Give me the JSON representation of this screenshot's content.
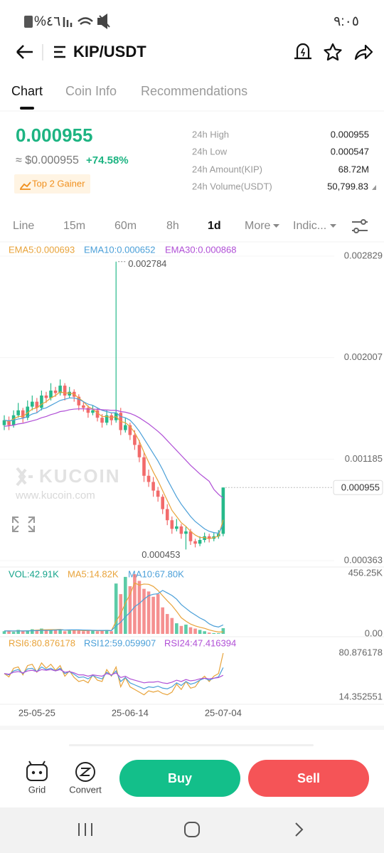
{
  "status": {
    "battery": "%٤٦",
    "time": "٩:٠٥"
  },
  "header": {
    "pair": "KIP/USDT"
  },
  "tabs": [
    "Chart",
    "Coin Info",
    "Recommendations"
  ],
  "ticker": {
    "price": "0.000955",
    "fiat": "≈ $0.000955",
    "change": "+74.58%",
    "badge": "Top 2 Gainer",
    "stats": [
      {
        "label": "24h High",
        "value": "0.000955"
      },
      {
        "label": "24h Low",
        "value": "0.000547"
      },
      {
        "label": "24h Amount(KIP)",
        "value": "68.72M"
      },
      {
        "label": "24h Volume(USDT)",
        "value": "50,799.83"
      }
    ]
  },
  "intervals": [
    "Line",
    "15m",
    "60m",
    "8h",
    "1d",
    "More",
    "Indic..."
  ],
  "chart_data": {
    "type": "candlestick",
    "up_color": "#26b98a",
    "down_color": "#f26b6b",
    "grid": true,
    "watermark": "KUCOIN",
    "watermark_url": "www.kucoin.com",
    "dates": [
      null,
      null,
      null,
      null,
      null,
      null,
      null,
      "25-05-25",
      null,
      null,
      null,
      null,
      null,
      null,
      null,
      null,
      null,
      null,
      null,
      null,
      null,
      null,
      null,
      null,
      null,
      null,
      null,
      "25-06-14",
      null,
      null,
      null,
      null,
      null,
      null,
      null,
      null,
      null,
      null,
      null,
      null,
      null,
      null,
      null,
      null,
      null,
      null,
      null,
      "25-07-04"
    ],
    "candles": [
      [
        0.00146,
        0.00154,
        0.00142,
        0.0015
      ],
      [
        0.0015,
        0.00153,
        0.00142,
        0.00146
      ],
      [
        0.00146,
        0.00158,
        0.00144,
        0.00154
      ],
      [
        0.00154,
        0.00164,
        0.00152,
        0.00158
      ],
      [
        0.00158,
        0.0016,
        0.00148,
        0.00152
      ],
      [
        0.00152,
        0.00166,
        0.0015,
        0.00161
      ],
      [
        0.00161,
        0.0017,
        0.00158,
        0.00165
      ],
      [
        0.00165,
        0.00168,
        0.00156,
        0.0016
      ],
      [
        0.0016,
        0.00174,
        0.00158,
        0.0017
      ],
      [
        0.0017,
        0.00173,
        0.00164,
        0.00168
      ],
      [
        0.00168,
        0.0018,
        0.00166,
        0.00174
      ],
      [
        0.00174,
        0.00177,
        0.00169,
        0.00172
      ],
      [
        0.00172,
        0.00183,
        0.0017,
        0.00178
      ],
      [
        0.00178,
        0.0018,
        0.00166,
        0.0017
      ],
      [
        0.0017,
        0.00177,
        0.00168,
        0.00173
      ],
      [
        0.00173,
        0.00175,
        0.00165,
        0.00169
      ],
      [
        0.00169,
        0.00171,
        0.00158,
        0.00162
      ],
      [
        0.00162,
        0.00165,
        0.00157,
        0.0016
      ],
      [
        0.0016,
        0.00162,
        0.00152,
        0.00156
      ],
      [
        0.00156,
        0.00162,
        0.00154,
        0.00158
      ],
      [
        0.00158,
        0.0016,
        0.00149,
        0.00152
      ],
      [
        0.00152,
        0.00155,
        0.00144,
        0.00148
      ],
      [
        0.00148,
        0.00158,
        0.00146,
        0.00154
      ],
      [
        0.00154,
        0.00156,
        0.00146,
        0.0015
      ],
      [
        0.0015,
        0.002784,
        0.00148,
        0.00156
      ],
      [
        0.00156,
        0.0016,
        0.00138,
        0.00142
      ],
      [
        0.00142,
        0.00152,
        0.0014,
        0.00146
      ],
      [
        0.00146,
        0.00148,
        0.00134,
        0.00138
      ],
      [
        0.00138,
        0.00142,
        0.00126,
        0.0013
      ],
      [
        0.0013,
        0.00134,
        0.00116,
        0.0012
      ],
      [
        0.0012,
        0.00124,
        0.001,
        0.00105
      ],
      [
        0.00105,
        0.0011,
        0.00096,
        0.001
      ],
      [
        0.001,
        0.00104,
        0.00088,
        0.00093
      ],
      [
        0.00093,
        0.00096,
        0.00084,
        0.00088
      ],
      [
        0.00088,
        0.0009,
        0.00074,
        0.00078
      ],
      [
        0.00078,
        0.00082,
        0.00065,
        0.00069
      ],
      [
        0.00069,
        0.00072,
        0.00058,
        0.00062
      ],
      [
        0.00062,
        0.0007,
        0.0006,
        0.00064
      ],
      [
        0.00064,
        0.00066,
        0.00054,
        0.00058
      ],
      [
        0.00058,
        0.00064,
        0.000453,
        0.0006
      ],
      [
        0.0006,
        0.00062,
        0.00049,
        0.00052
      ],
      [
        0.00052,
        0.00054,
        0.00047,
        0.0005
      ],
      [
        0.0005,
        0.00056,
        0.00048,
        0.00053
      ],
      [
        0.00053,
        0.00059,
        0.00051,
        0.00056
      ],
      [
        0.00056,
        0.00058,
        0.00051,
        0.00054
      ],
      [
        0.00054,
        0.00059,
        0.00052,
        0.00056
      ],
      [
        0.00056,
        0.00061,
        0.00054,
        0.00058
      ],
      [
        0.00058,
        0.000955,
        0.00056,
        0.000955
      ]
    ],
    "ylim": [
      0.000363,
      0.002829
    ],
    "yticks": [
      0.000363,
      0.001185,
      0.002007,
      0.002829
    ],
    "ema": [
      {
        "name": "EMA5:0.000693",
        "color": "#e8a33a",
        "values": [
          0.0015,
          0.00149,
          0.00151,
          0.00153,
          0.00153,
          0.00156,
          0.00159,
          0.0016,
          0.00163,
          0.00165,
          0.00168,
          0.0017,
          0.00173,
          0.00172,
          0.00172,
          0.00171,
          0.00168,
          0.00165,
          0.00161,
          0.00159,
          0.00156,
          0.00153,
          0.00153,
          0.00152,
          0.00153,
          0.00149,
          0.00148,
          0.00145,
          0.0014,
          0.00133,
          0.00124,
          0.00116,
          0.00108,
          0.00101,
          0.00093,
          0.00085,
          0.00077,
          0.00072,
          0.00067,
          0.00064,
          0.0006,
          0.00057,
          0.00055,
          0.00055,
          0.00054,
          0.00055,
          0.00056,
          0.000693
        ]
      },
      {
        "name": "EMA10:0.000652",
        "color": "#4a9fd8",
        "values": [
          0.0015,
          0.001495,
          0.0015,
          0.00151,
          0.001515,
          0.00153,
          0.00155,
          0.00156,
          0.00159,
          0.0016,
          0.00162,
          0.00164,
          0.00166,
          0.00167,
          0.00168,
          0.00168,
          0.00167,
          0.00165,
          0.00163,
          0.00162,
          0.0016,
          0.00158,
          0.00157,
          0.00156,
          0.00156,
          0.00153,
          0.00152,
          0.0015,
          0.00146,
          0.00141,
          0.00135,
          0.00129,
          0.00123,
          0.00117,
          0.0011,
          0.00102,
          0.00095,
          0.00088,
          0.00082,
          0.00077,
          0.00072,
          0.00068,
          0.00065,
          0.00062,
          0.0006,
          0.00059,
          0.000585,
          0.000652
        ]
      },
      {
        "name": "EMA30:0.000868",
        "color": "#b04fd6",
        "values": [
          0.00145,
          0.001455,
          0.00146,
          0.00147,
          0.001475,
          0.001485,
          0.001495,
          0.001505,
          0.00152,
          0.00153,
          0.001545,
          0.001555,
          0.00157,
          0.001575,
          0.001585,
          0.00159,
          0.001592,
          0.001592,
          0.00159,
          0.00159,
          0.001588,
          0.001585,
          0.001583,
          0.00158,
          0.00158,
          0.00157,
          0.001565,
          0.001555,
          0.00154,
          0.00152,
          0.001495,
          0.00147,
          0.00144,
          0.00141,
          0.001375,
          0.001335,
          0.001295,
          0.001255,
          0.001215,
          0.001175,
          0.001135,
          0.0011,
          0.001065,
          0.001035,
          0.001005,
          0.00094,
          0.0009,
          0.000868
        ]
      }
    ],
    "volume": {
      "legend": "VOL:42.91K",
      "values": [
        20000,
        25000,
        15000,
        30000,
        20000,
        25000,
        35000,
        30000,
        40000,
        25000,
        30000,
        35000,
        30000,
        20000,
        25000,
        30000,
        25000,
        20000,
        30000,
        25000,
        20000,
        25000,
        30000,
        20000,
        380000,
        300000,
        430000,
        360000,
        450000,
        400000,
        340000,
        320000,
        280000,
        300000,
        200000,
        150000,
        120000,
        80000,
        60000,
        70000,
        50000,
        40000,
        30000,
        20000,
        10000,
        6000,
        5000,
        42910
      ],
      "ylim": [
        0,
        456250
      ],
      "yticks": [
        {
          "value": 0,
          "label": "0.00"
        },
        {
          "value": 456250,
          "label": "456.25K"
        }
      ],
      "ma": [
        {
          "name": "MA5:14.82K",
          "color": "#e8a33a",
          "values": [
            22000,
            22000,
            21000,
            23000,
            22000,
            23000,
            25000,
            28000,
            30000,
            31000,
            32000,
            32000,
            34000,
            28000,
            28000,
            28000,
            28000,
            24000,
            26000,
            26000,
            24000,
            24000,
            26000,
            24000,
            95000,
            151000,
            232000,
            298000,
            384000,
            368000,
            376000,
            374000,
            358000,
            328000,
            288000,
            250000,
            214000,
            170000,
            122000,
            96000,
            74000,
            60000,
            50000,
            42000,
            30000,
            21000,
            14000,
            14820
          ]
        },
        {
          "name": "MA10:67.80K",
          "color": "#4a9fd8",
          "values": [
            22000,
            22000,
            22000,
            22000,
            22000,
            23000,
            24000,
            25000,
            26000,
            26000,
            27000,
            29000,
            31000,
            29000,
            30000,
            30000,
            30000,
            29000,
            28000,
            27000,
            26000,
            26000,
            26000,
            25000,
            60000,
            88000,
            128000,
            162000,
            205000,
            230000,
            262000,
            288000,
            299000,
            303000,
            328000,
            309000,
            290000,
            262000,
            221000,
            193000,
            165000,
            143000,
            120000,
            103000,
            76000,
            59000,
            52000,
            67800
          ]
        }
      ]
    },
    "rsi": {
      "ylim": [
        14.352551,
        80.876178
      ],
      "yticks": [
        14.352551,
        80.876178
      ],
      "series": [
        {
          "name": "RSI6:80.876178",
          "color": "#e8a33a",
          "values": [
            50,
            45,
            58,
            60,
            48,
            62,
            64,
            52,
            66,
            58,
            64,
            55,
            62,
            46,
            54,
            44,
            38,
            40,
            36,
            48,
            40,
            38,
            56,
            46,
            60,
            30,
            44,
            30,
            26,
            22,
            18,
            24,
            22,
            24,
            20,
            18,
            22,
            34,
            26,
            38,
            28,
            30,
            40,
            46,
            38,
            46,
            50,
            80.876178
          ]
        },
        {
          "name": "RSI12:59.059907",
          "color": "#4a9fd8",
          "values": [
            50,
            48,
            54,
            56,
            50,
            57,
            58,
            53,
            60,
            56,
            58,
            54,
            58,
            50,
            53,
            49,
            44,
            45,
            42,
            47,
            44,
            42,
            52,
            47,
            54,
            38,
            44,
            36,
            33,
            30,
            27,
            30,
            29,
            31,
            28,
            27,
            30,
            36,
            32,
            38,
            34,
            36,
            40,
            43,
            40,
            43,
            45,
            59.059907
          ]
        },
        {
          "name": "RSI24:47.416394",
          "color": "#b04fd6",
          "values": [
            50,
            49,
            52,
            53,
            51,
            54,
            55,
            53,
            56,
            55,
            56,
            54,
            56,
            52,
            53,
            51,
            48,
            48,
            46,
            48,
            47,
            46,
            50,
            48,
            51,
            44,
            46,
            42,
            40,
            38,
            36,
            37,
            37,
            38,
            36,
            35,
            37,
            40,
            38,
            41,
            39,
            40,
            42,
            43,
            42,
            43,
            44,
            47.416394
          ]
        }
      ]
    }
  },
  "actions": {
    "grid": "Grid",
    "convert": "Convert",
    "buy": "Buy",
    "sell": "Sell"
  }
}
